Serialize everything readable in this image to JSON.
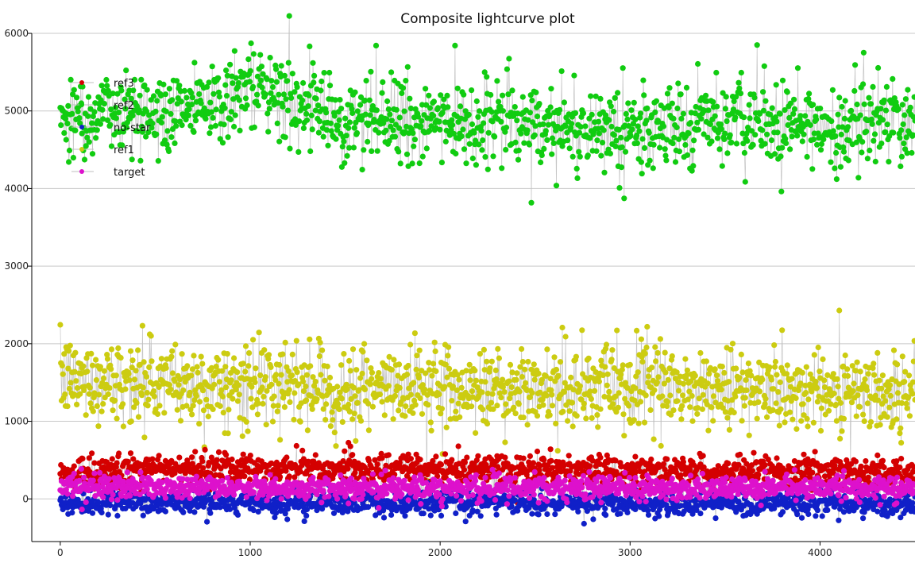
{
  "chart_data": {
    "type": "scatter",
    "title": "Composite lightcurve plot",
    "xlabel": "",
    "ylabel": "",
    "xlim": [
      -150,
      4500
    ],
    "ylim": [
      -550,
      6000
    ],
    "grid": "horizontal",
    "legend_position": "top-left",
    "x_ticks": [
      0,
      1000,
      2000,
      3000,
      4000
    ],
    "y_ticks": [
      0,
      1000,
      2000,
      3000,
      4000,
      5000,
      6000
    ],
    "point_count": 1300,
    "series": [
      {
        "name": "ref3",
        "color": "#d40000",
        "mean": 380,
        "spread": 90,
        "summary": [
          {
            "x": 0,
            "y": 330
          },
          {
            "x": 500,
            "y": 390
          },
          {
            "x": 1000,
            "y": 400
          },
          {
            "x": 1500,
            "y": 380
          },
          {
            "x": 2000,
            "y": 390
          },
          {
            "x": 2500,
            "y": 380
          },
          {
            "x": 3000,
            "y": 370
          },
          {
            "x": 3500,
            "y": 360
          },
          {
            "x": 4000,
            "y": 370
          },
          {
            "x": 4500,
            "y": 330
          }
        ]
      },
      {
        "name": "ref2",
        "color": "#11cc11",
        "mean": 4900,
        "spread": 260,
        "summary": [
          {
            "x": 0,
            "y": 4950
          },
          {
            "x": 500,
            "y": 5000
          },
          {
            "x": 1000,
            "y": 5250
          },
          {
            "x": 1500,
            "y": 4900
          },
          {
            "x": 2000,
            "y": 4850
          },
          {
            "x": 2500,
            "y": 4850
          },
          {
            "x": 3000,
            "y": 4750
          },
          {
            "x": 3500,
            "y": 4850
          },
          {
            "x": 4000,
            "y": 4800
          },
          {
            "x": 4500,
            "y": 4850
          }
        ]
      },
      {
        "name": "no-star",
        "color": "#1020c8",
        "mean": -60,
        "spread": 70,
        "summary": [
          {
            "x": 0,
            "y": -70
          },
          {
            "x": 500,
            "y": -50
          },
          {
            "x": 1000,
            "y": -60
          },
          {
            "x": 1500,
            "y": -50
          },
          {
            "x": 2000,
            "y": -40
          },
          {
            "x": 2500,
            "y": -50
          },
          {
            "x": 3000,
            "y": -60
          },
          {
            "x": 3500,
            "y": -60
          },
          {
            "x": 4000,
            "y": -60
          },
          {
            "x": 4500,
            "y": -70
          }
        ]
      },
      {
        "name": "ref1",
        "color": "#cccc11",
        "mean": 1450,
        "spread": 250,
        "summary": [
          {
            "x": 0,
            "y": 1550
          },
          {
            "x": 500,
            "y": 1500
          },
          {
            "x": 1000,
            "y": 1450
          },
          {
            "x": 1500,
            "y": 1400
          },
          {
            "x": 2000,
            "y": 1450
          },
          {
            "x": 2500,
            "y": 1400
          },
          {
            "x": 3000,
            "y": 1450
          },
          {
            "x": 3500,
            "y": 1400
          },
          {
            "x": 4000,
            "y": 1400
          },
          {
            "x": 4500,
            "y": 1350
          }
        ]
      },
      {
        "name": "target",
        "color": "#dd11cc",
        "mean": 140,
        "spread": 70,
        "summary": [
          {
            "x": 0,
            "y": 160
          },
          {
            "x": 500,
            "y": 150
          },
          {
            "x": 1000,
            "y": 140
          },
          {
            "x": 1500,
            "y": 140
          },
          {
            "x": 2000,
            "y": 140
          },
          {
            "x": 2500,
            "y": 140
          },
          {
            "x": 3000,
            "y": 140
          },
          {
            "x": 3500,
            "y": 130
          },
          {
            "x": 4000,
            "y": 140
          },
          {
            "x": 4500,
            "y": 140
          }
        ]
      }
    ]
  }
}
